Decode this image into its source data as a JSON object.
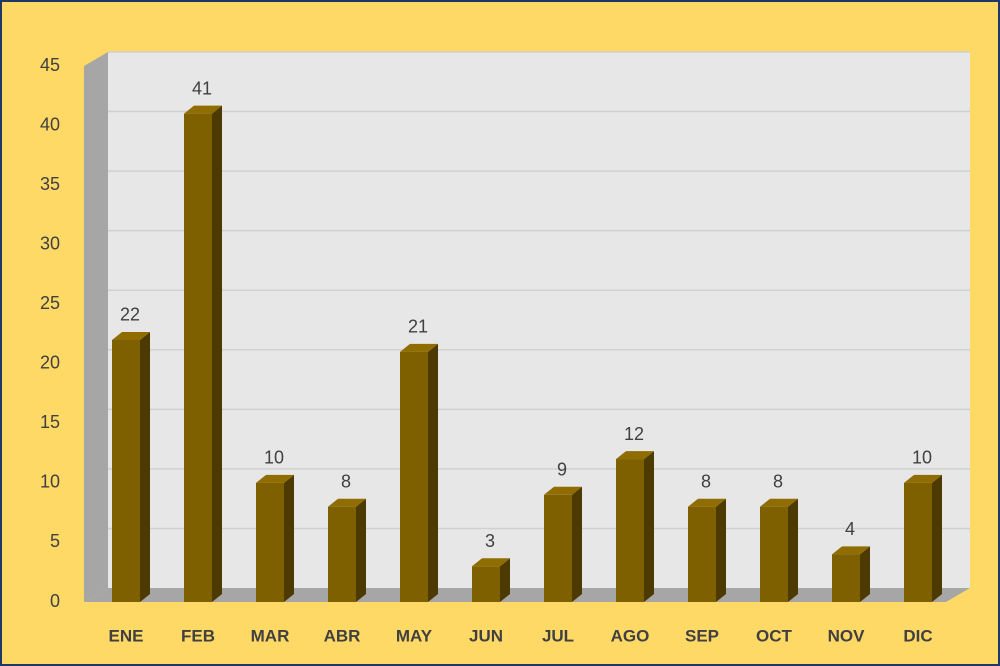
{
  "chart_data": {
    "type": "bar3d",
    "categories": [
      "ENE",
      "FEB",
      "MAR",
      "ABR",
      "MAY",
      "JUN",
      "JUL",
      "AGO",
      "SEP",
      "OCT",
      "NOV",
      "DIC"
    ],
    "values": [
      22,
      41,
      10,
      8,
      21,
      3,
      9,
      12,
      8,
      8,
      4,
      10
    ],
    "color": "#7f6000",
    "ylim": [
      0,
      45
    ],
    "yticks": [
      0,
      5,
      10,
      15,
      20,
      25,
      30,
      35,
      40,
      45
    ],
    "grid": true
  }
}
